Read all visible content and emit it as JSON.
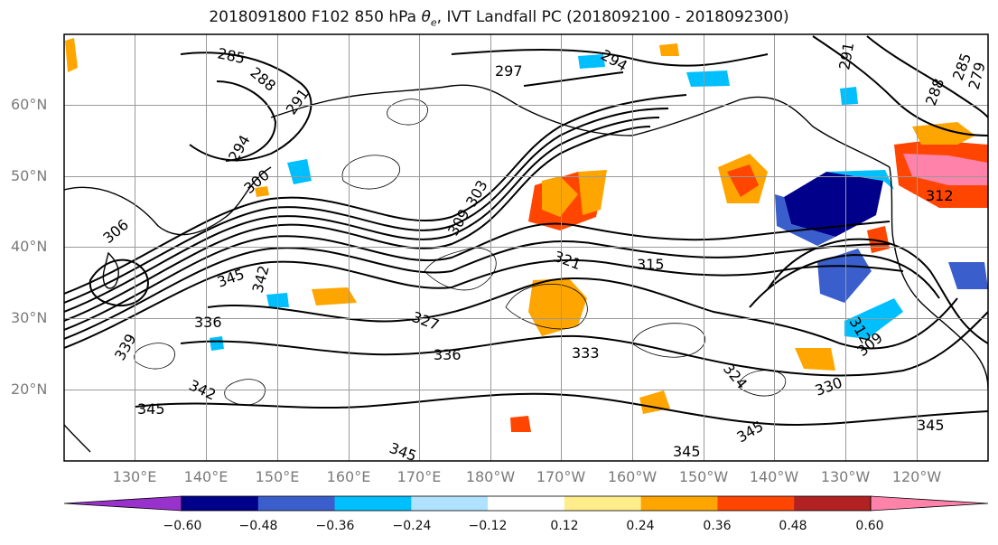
{
  "title": {
    "prefix": "2018091800 F102 850 hPa ",
    "symbol": "θ",
    "subscript": "e",
    "suffix": ", IVT Landfall PC (2018092100 - 2018092300)"
  },
  "map": {
    "lat_labels": [
      "60°N",
      "50°N",
      "40°N",
      "30°N",
      "20°N"
    ],
    "lon_labels": [
      "130°E",
      "140°E",
      "150°E",
      "160°E",
      "170°E",
      "180°W",
      "170°W",
      "160°W",
      "150°W",
      "140°W",
      "130°W",
      "120°W"
    ],
    "contour_labels": [
      "285",
      "288",
      "291",
      "294",
      "297",
      "294",
      "291",
      "288",
      "285",
      "279",
      "294",
      "300",
      "303",
      "309",
      "312",
      "315",
      "321",
      "327",
      "336",
      "333",
      "330",
      "324",
      "345",
      "345",
      "345",
      "345",
      "342",
      "339",
      "336",
      "345",
      "342",
      "345",
      "312",
      "309",
      "306"
    ],
    "grid_color": "#999999"
  },
  "colorbar": {
    "ticks": [
      "−0.60",
      "−0.48",
      "−0.36",
      "−0.24",
      "−0.12",
      "0.12",
      "0.24",
      "0.36",
      "0.48",
      "0.60"
    ],
    "colors": [
      "#9932cc",
      "#00008b",
      "#3a5fcd",
      "#00bfff",
      "#b0e2ff",
      "#ffffff",
      "#ffec8b",
      "#ffa500",
      "#ff4500",
      "#b22222",
      "#ff82ab"
    ]
  }
}
